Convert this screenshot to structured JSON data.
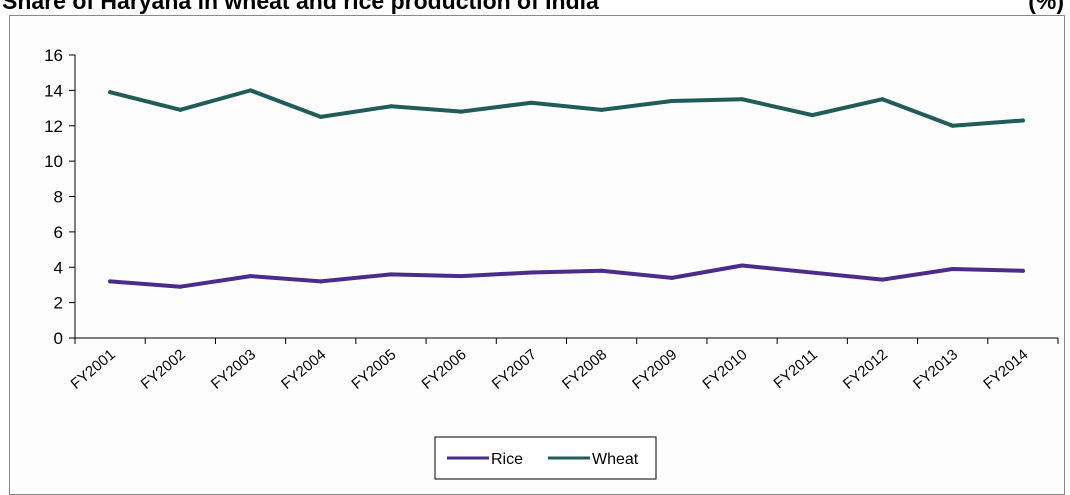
{
  "title": "Share of Haryana in wheat and rice production of India",
  "unit": "(%)",
  "colors": {
    "rice": "#4b2c8c",
    "wheat": "#1f5c5a",
    "axis": "#000000",
    "frame": "#8a8a8a"
  },
  "chart_data": {
    "type": "line",
    "title": "Share of Haryana in wheat and rice production of India",
    "unit": "(%)",
    "xlabel": "",
    "ylabel": "",
    "categories": [
      "FY2001",
      "FY2002",
      "FY2003",
      "FY2004",
      "FY2005",
      "FY2006",
      "FY2007",
      "FY2008",
      "FY2009",
      "FY2010",
      "FY2011",
      "FY2012",
      "FY2013",
      "FY2014"
    ],
    "yticks": [
      "0",
      "2",
      "4",
      "6",
      "8",
      "10",
      "12",
      "14",
      "16"
    ],
    "ylim": [
      0,
      16
    ],
    "grid": false,
    "legend_position": "bottom",
    "series": [
      {
        "name": "Rice",
        "color": "#4b2c8c",
        "values": [
          3.2,
          2.9,
          3.5,
          3.2,
          3.6,
          3.5,
          3.7,
          3.8,
          3.4,
          4.1,
          3.7,
          3.3,
          3.9,
          3.8
        ]
      },
      {
        "name": "Wheat",
        "color": "#1f5c5a",
        "values": [
          13.9,
          12.9,
          14.0,
          12.5,
          13.1,
          12.8,
          13.3,
          12.9,
          13.4,
          13.5,
          12.6,
          13.5,
          12.0,
          12.3
        ]
      }
    ]
  }
}
